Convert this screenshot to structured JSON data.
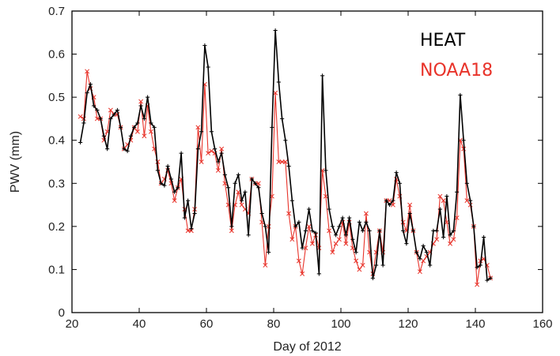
{
  "chart_data": {
    "type": "line",
    "xlabel": "Day of 2012",
    "ylabel": "PWV (mm)",
    "xlim": [
      20,
      160
    ],
    "ylim": [
      0,
      0.7
    ],
    "xticks": [
      20,
      40,
      60,
      80,
      100,
      120,
      140,
      160
    ],
    "yticks": [
      0,
      0.1,
      0.2,
      0.3,
      0.4,
      0.5,
      0.6,
      0.7
    ],
    "legend_position": "top-right",
    "series": [
      {
        "name": "HEAT",
        "color": "#000000",
        "marker": "plus",
        "points": [
          [
            22.5,
            0.395
          ],
          [
            23.5,
            0.44
          ],
          [
            24.5,
            0.51
          ],
          [
            25.5,
            0.53
          ],
          [
            26.5,
            0.48
          ],
          [
            27.5,
            0.47
          ],
          [
            28.5,
            0.45
          ],
          [
            29.5,
            0.41
          ],
          [
            30.5,
            0.38
          ],
          [
            31.5,
            0.45
          ],
          [
            32.5,
            0.46
          ],
          [
            33.5,
            0.47
          ],
          [
            34.5,
            0.43
          ],
          [
            35.5,
            0.38
          ],
          [
            36.5,
            0.375
          ],
          [
            37.5,
            0.41
          ],
          [
            38.5,
            0.43
          ],
          [
            39.5,
            0.44
          ],
          [
            40.5,
            0.48
          ],
          [
            41.5,
            0.45
          ],
          [
            42.5,
            0.5
          ],
          [
            43.5,
            0.44
          ],
          [
            44.5,
            0.43
          ],
          [
            45.5,
            0.33
          ],
          [
            46.5,
            0.3
          ],
          [
            47.5,
            0.295
          ],
          [
            48.5,
            0.34
          ],
          [
            49.5,
            0.31
          ],
          [
            50.5,
            0.28
          ],
          [
            51.5,
            0.29
          ],
          [
            52.5,
            0.37
          ],
          [
            53.5,
            0.22
          ],
          [
            54.5,
            0.26
          ],
          [
            55.5,
            0.195
          ],
          [
            56.5,
            0.23
          ],
          [
            57.5,
            0.38
          ],
          [
            58.5,
            0.42
          ],
          [
            59.5,
            0.62
          ],
          [
            60.5,
            0.57
          ],
          [
            61.5,
            0.42
          ],
          [
            62.5,
            0.38
          ],
          [
            63.5,
            0.35
          ],
          [
            64.5,
            0.37
          ],
          [
            65.5,
            0.32
          ],
          [
            66.5,
            0.29
          ],
          [
            67.5,
            0.2
          ],
          [
            68.5,
            0.3
          ],
          [
            69.5,
            0.32
          ],
          [
            70.5,
            0.26
          ],
          [
            71.5,
            0.28
          ],
          [
            72.5,
            0.18
          ],
          [
            73.5,
            0.31
          ],
          [
            74.5,
            0.3
          ],
          [
            75.5,
            0.29
          ],
          [
            76.5,
            0.23
          ],
          [
            77.5,
            0.2
          ],
          [
            78.5,
            0.14
          ],
          [
            79.5,
            0.43
          ],
          [
            80.5,
            0.655
          ],
          [
            81.5,
            0.535
          ],
          [
            82.5,
            0.45
          ],
          [
            83.5,
            0.4
          ],
          [
            84.5,
            0.34
          ],
          [
            85.5,
            0.26
          ],
          [
            86.5,
            0.2
          ],
          [
            87.5,
            0.21
          ],
          [
            88.5,
            0.15
          ],
          [
            89.5,
            0.19
          ],
          [
            90.5,
            0.24
          ],
          [
            91.5,
            0.19
          ],
          [
            92.5,
            0.185
          ],
          [
            93.5,
            0.09
          ],
          [
            94.5,
            0.55
          ],
          [
            95.5,
            0.33
          ],
          [
            96.5,
            0.24
          ],
          [
            97.5,
            0.2
          ],
          [
            98.5,
            0.18
          ],
          [
            99.5,
            0.2
          ],
          [
            100.5,
            0.22
          ],
          [
            101.5,
            0.18
          ],
          [
            102.5,
            0.22
          ],
          [
            103.5,
            0.17
          ],
          [
            104.5,
            0.14
          ],
          [
            105.5,
            0.21
          ],
          [
            106.5,
            0.19
          ],
          [
            107.5,
            0.21
          ],
          [
            108.5,
            0.19
          ],
          [
            109.5,
            0.08
          ],
          [
            110.5,
            0.11
          ],
          [
            111.5,
            0.19
          ],
          [
            112.5,
            0.11
          ],
          [
            113.5,
            0.26
          ],
          [
            114.5,
            0.25
          ],
          [
            115.5,
            0.26
          ],
          [
            116.5,
            0.325
          ],
          [
            117.5,
            0.3
          ],
          [
            118.5,
            0.19
          ],
          [
            119.5,
            0.16
          ],
          [
            120.5,
            0.23
          ],
          [
            121.5,
            0.19
          ],
          [
            122.5,
            0.14
          ],
          [
            123.5,
            0.125
          ],
          [
            124.5,
            0.155
          ],
          [
            125.5,
            0.14
          ],
          [
            126.5,
            0.11
          ],
          [
            127.5,
            0.19
          ],
          [
            128.5,
            0.19
          ],
          [
            129.5,
            0.24
          ],
          [
            130.5,
            0.175
          ],
          [
            131.5,
            0.27
          ],
          [
            132.5,
            0.18
          ],
          [
            133.5,
            0.19
          ],
          [
            134.5,
            0.28
          ],
          [
            135.5,
            0.505
          ],
          [
            136.5,
            0.4
          ],
          [
            137.5,
            0.3
          ],
          [
            138.5,
            0.26
          ],
          [
            139.5,
            0.2
          ],
          [
            140.5,
            0.105
          ],
          [
            141.5,
            0.11
          ],
          [
            142.5,
            0.175
          ],
          [
            143.5,
            0.075
          ],
          [
            144.5,
            0.08
          ]
        ]
      },
      {
        "name": "NOAA18",
        "color": "#e8332a",
        "marker": "cross",
        "points": [
          [
            22.5,
            0.455
          ],
          [
            23.5,
            0.45
          ],
          [
            24.5,
            0.56
          ],
          [
            25.5,
            0.52
          ],
          [
            26.5,
            0.5
          ],
          [
            27.5,
            0.45
          ],
          [
            28.5,
            0.45
          ],
          [
            29.5,
            0.4
          ],
          [
            30.5,
            0.42
          ],
          [
            31.5,
            0.47
          ],
          [
            32.5,
            0.46
          ],
          [
            33.5,
            0.46
          ],
          [
            34.5,
            0.43
          ],
          [
            35.5,
            0.38
          ],
          [
            36.5,
            0.39
          ],
          [
            37.5,
            0.4
          ],
          [
            38.5,
            0.43
          ],
          [
            39.5,
            0.42
          ],
          [
            40.5,
            0.49
          ],
          [
            41.5,
            0.41
          ],
          [
            42.5,
            0.48
          ],
          [
            43.5,
            0.42
          ],
          [
            44.5,
            0.38
          ],
          [
            45.5,
            0.35
          ],
          [
            46.5,
            0.3
          ],
          [
            47.5,
            0.31
          ],
          [
            48.5,
            0.33
          ],
          [
            49.5,
            0.3
          ],
          [
            50.5,
            0.26
          ],
          [
            51.5,
            0.29
          ],
          [
            52.5,
            0.31
          ],
          [
            53.5,
            0.24
          ],
          [
            54.5,
            0.19
          ],
          [
            55.5,
            0.19
          ],
          [
            56.5,
            0.24
          ],
          [
            57.5,
            0.43
          ],
          [
            58.5,
            0.35
          ],
          [
            59.5,
            0.53
          ],
          [
            60.5,
            0.37
          ],
          [
            61.5,
            0.375
          ],
          [
            62.5,
            0.37
          ],
          [
            63.5,
            0.33
          ],
          [
            64.5,
            0.38
          ],
          [
            65.5,
            0.3
          ],
          [
            66.5,
            0.25
          ],
          [
            67.5,
            0.19
          ],
          [
            68.5,
            0.25
          ],
          [
            69.5,
            0.28
          ],
          [
            70.5,
            0.25
          ],
          [
            71.5,
            0.24
          ],
          [
            72.5,
            0.23
          ],
          [
            73.5,
            0.31
          ],
          [
            74.5,
            0.3
          ],
          [
            75.5,
            0.3
          ],
          [
            76.5,
            0.21
          ],
          [
            77.5,
            0.11
          ],
          [
            78.5,
            0.2
          ],
          [
            79.5,
            0.27
          ],
          [
            80.5,
            0.51
          ],
          [
            81.5,
            0.35
          ],
          [
            82.5,
            0.35
          ],
          [
            83.5,
            0.35
          ],
          [
            84.5,
            0.23
          ],
          [
            85.5,
            0.17
          ],
          [
            86.5,
            0.2
          ],
          [
            87.5,
            0.12
          ],
          [
            88.5,
            0.09
          ],
          [
            89.5,
            0.15
          ],
          [
            90.5,
            0.2
          ],
          [
            91.5,
            0.16
          ],
          [
            92.5,
            0.18
          ],
          [
            93.5,
            0.15
          ],
          [
            94.5,
            0.33
          ],
          [
            95.5,
            0.27
          ],
          [
            96.5,
            0.19
          ],
          [
            97.5,
            0.14
          ],
          [
            98.5,
            0.16
          ],
          [
            99.5,
            0.17
          ],
          [
            100.5,
            0.21
          ],
          [
            101.5,
            0.16
          ],
          [
            102.5,
            0.21
          ],
          [
            103.5,
            0.15
          ],
          [
            104.5,
            0.12
          ],
          [
            105.5,
            0.1
          ],
          [
            106.5,
            0.11
          ],
          [
            107.5,
            0.23
          ],
          [
            108.5,
            0.14
          ],
          [
            109.5,
            0.09
          ],
          [
            110.5,
            0.14
          ],
          [
            111.5,
            0.19
          ],
          [
            112.5,
            0.14
          ],
          [
            113.5,
            0.26
          ],
          [
            114.5,
            0.26
          ],
          [
            115.5,
            0.25
          ],
          [
            116.5,
            0.31
          ],
          [
            117.5,
            0.27
          ],
          [
            118.5,
            0.21
          ],
          [
            119.5,
            0.19
          ],
          [
            120.5,
            0.25
          ],
          [
            121.5,
            0.19
          ],
          [
            122.5,
            0.14
          ],
          [
            123.5,
            0.095
          ],
          [
            124.5,
            0.12
          ],
          [
            125.5,
            0.13
          ],
          [
            126.5,
            0.14
          ],
          [
            127.5,
            0.16
          ],
          [
            128.5,
            0.17
          ],
          [
            129.5,
            0.27
          ],
          [
            130.5,
            0.26
          ],
          [
            131.5,
            0.21
          ],
          [
            132.5,
            0.16
          ],
          [
            133.5,
            0.17
          ],
          [
            134.5,
            0.22
          ],
          [
            135.5,
            0.4
          ],
          [
            136.5,
            0.38
          ],
          [
            137.5,
            0.26
          ],
          [
            138.5,
            0.25
          ],
          [
            139.5,
            0.2
          ],
          [
            140.5,
            0.065
          ],
          [
            141.5,
            0.12
          ],
          [
            142.5,
            0.125
          ],
          [
            143.5,
            0.11
          ],
          [
            144.5,
            0.08
          ]
        ]
      }
    ]
  }
}
